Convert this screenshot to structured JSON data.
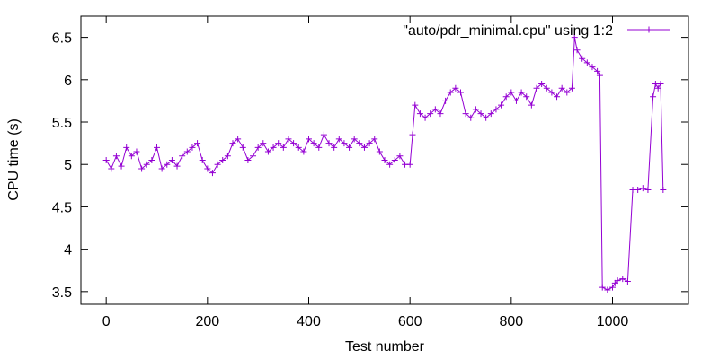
{
  "chart_data": {
    "type": "line",
    "title": "",
    "xlabel": "Test number",
    "ylabel": "CPU time (s)",
    "xlim": [
      -50,
      1150
    ],
    "ylim": [
      3.35,
      6.75
    ],
    "xticks": [
      0,
      200,
      400,
      600,
      800,
      1000
    ],
    "yticks": [
      3.5,
      4,
      4.5,
      5,
      5.5,
      6,
      6.5
    ],
    "xtick_labels": [
      "0",
      "200",
      "400",
      "600",
      "800",
      "1000"
    ],
    "ytick_labels": [
      "3.5",
      "4",
      "4.5",
      "5",
      "5.5",
      "6",
      "6.5"
    ],
    "grid": false,
    "legend_position": "top-right",
    "series": [
      {
        "name": "\"auto/pdr_minimal.cpu\" using 1:2",
        "color": "#9400d3",
        "marker": "plus",
        "x": [
          0,
          10,
          20,
          30,
          40,
          50,
          60,
          70,
          80,
          90,
          100,
          110,
          120,
          130,
          140,
          150,
          160,
          170,
          180,
          190,
          200,
          210,
          220,
          230,
          240,
          250,
          260,
          270,
          280,
          290,
          300,
          310,
          320,
          330,
          340,
          350,
          360,
          370,
          380,
          390,
          400,
          410,
          420,
          430,
          440,
          450,
          460,
          470,
          480,
          490,
          500,
          510,
          520,
          530,
          540,
          550,
          560,
          570,
          580,
          590,
          600,
          605,
          610,
          620,
          630,
          640,
          650,
          660,
          670,
          680,
          690,
          700,
          710,
          720,
          730,
          740,
          750,
          760,
          770,
          780,
          790,
          800,
          810,
          820,
          830,
          840,
          850,
          860,
          870,
          880,
          890,
          900,
          910,
          920,
          925,
          930,
          940,
          950,
          960,
          970,
          975,
          980,
          990,
          1000,
          1005,
          1010,
          1020,
          1030,
          1040,
          1050,
          1060,
          1070,
          1080,
          1085,
          1090,
          1095,
          1100
        ],
        "y": [
          5.05,
          4.95,
          5.1,
          4.98,
          5.2,
          5.1,
          5.15,
          4.95,
          5.0,
          5.05,
          5.2,
          4.95,
          5.0,
          5.05,
          4.98,
          5.1,
          5.15,
          5.2,
          5.25,
          5.05,
          4.95,
          4.9,
          5.0,
          5.05,
          5.1,
          5.25,
          5.3,
          5.2,
          5.05,
          5.1,
          5.2,
          5.25,
          5.15,
          5.2,
          5.25,
          5.2,
          5.3,
          5.25,
          5.2,
          5.15,
          5.3,
          5.25,
          5.2,
          5.35,
          5.25,
          5.2,
          5.3,
          5.25,
          5.2,
          5.3,
          5.25,
          5.2,
          5.25,
          5.3,
          5.15,
          5.05,
          5.0,
          5.05,
          5.1,
          5.0,
          5.0,
          5.35,
          5.7,
          5.6,
          5.55,
          5.6,
          5.65,
          5.6,
          5.75,
          5.85,
          5.9,
          5.85,
          5.6,
          5.55,
          5.65,
          5.6,
          5.55,
          5.6,
          5.65,
          5.7,
          5.8,
          5.85,
          5.75,
          5.85,
          5.8,
          5.7,
          5.9,
          5.95,
          5.9,
          5.85,
          5.8,
          5.9,
          5.85,
          5.9,
          6.5,
          6.35,
          6.25,
          6.2,
          6.15,
          6.1,
          6.05,
          3.55,
          3.52,
          3.55,
          3.6,
          3.63,
          3.65,
          3.62,
          4.7,
          4.7,
          4.72,
          4.7,
          5.8,
          5.95,
          5.9,
          5.95,
          4.7
        ]
      }
    ]
  }
}
